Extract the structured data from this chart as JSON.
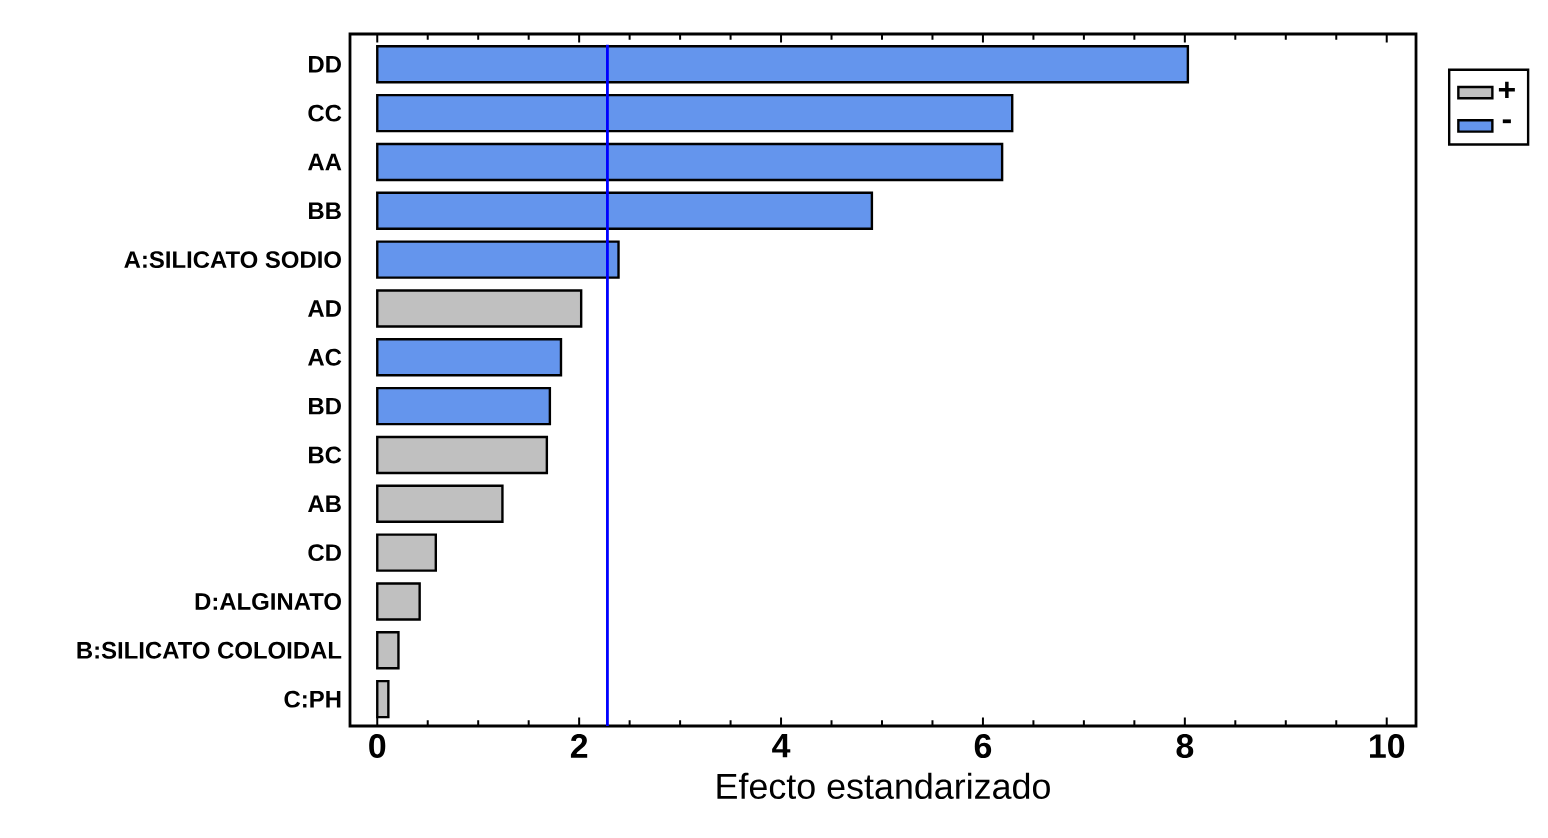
{
  "chart_data": {
    "type": "bar",
    "orientation": "horizontal",
    "xlabel": "Efecto estandarizado",
    "categories": [
      "DD",
      "CC",
      "AA",
      "BB",
      "A:SILICATO SODIO",
      "AD",
      "AC",
      "BD",
      "BC",
      "AB",
      "CD",
      "D:ALGINATO",
      "B:SILICATO COLOIDAL",
      "C:PH"
    ],
    "series": [
      {
        "name": "+",
        "color": "#c0c0c0",
        "values": [
          null,
          null,
          null,
          null,
          null,
          2.02,
          null,
          null,
          1.68,
          1.24,
          0.58,
          0.42,
          0.21,
          0.11
        ]
      },
      {
        "name": "-",
        "color": "#6495ed",
        "values": [
          8.03,
          6.29,
          6.19,
          4.9,
          2.39,
          null,
          1.82,
          1.71,
          null,
          null,
          null,
          null,
          null,
          null
        ]
      }
    ],
    "xlim": [
      -0.27,
      10.29
    ],
    "xticks": [
      0,
      2,
      4,
      6,
      8,
      10
    ],
    "ref_lines": [
      {
        "axis": "x",
        "value": 2.28,
        "color": "#0000ff"
      }
    ],
    "legend": "top right"
  }
}
